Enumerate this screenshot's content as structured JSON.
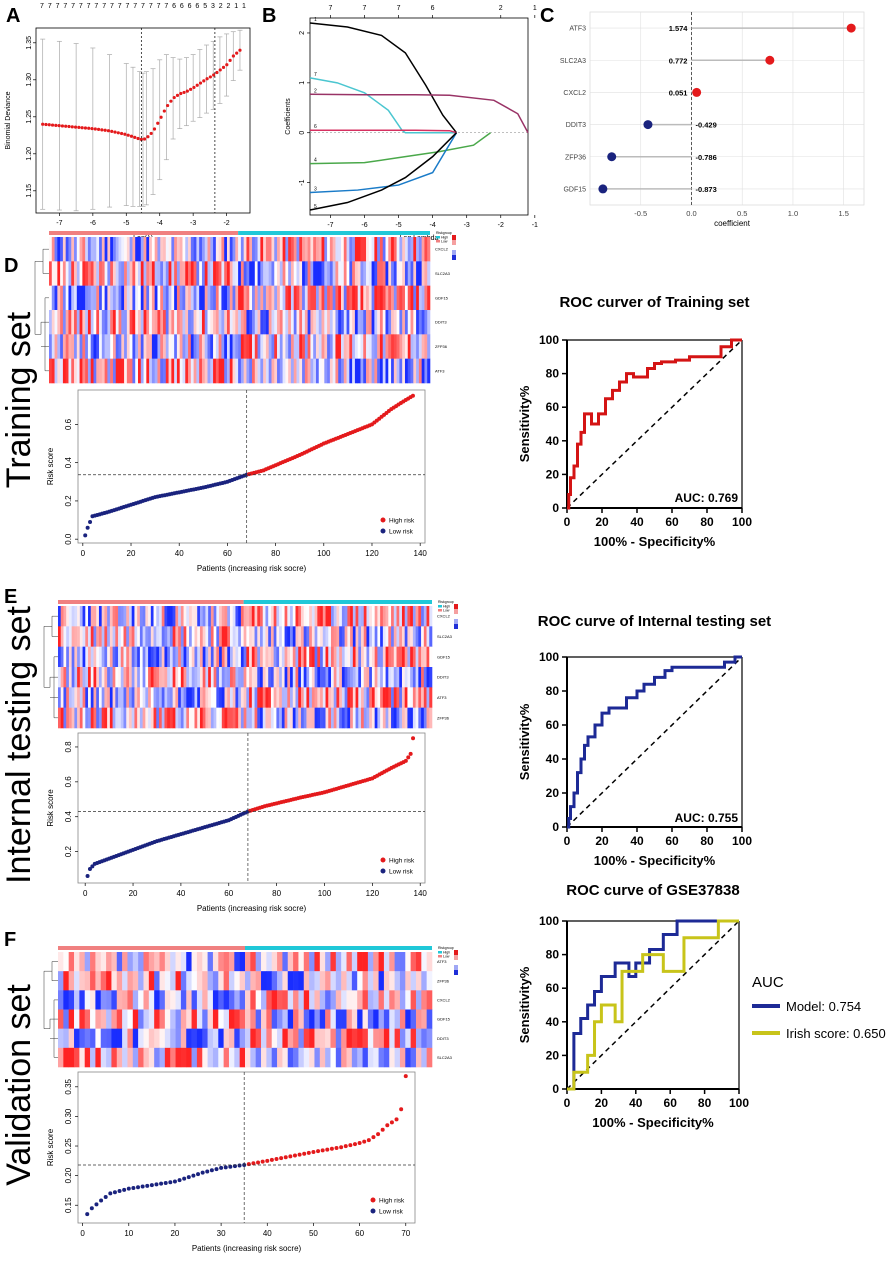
{
  "colors": {
    "red": "#e41a1c",
    "navy": "#1a237e",
    "black": "#000000",
    "grid": "#e0e0e0",
    "roc_red": "#d41414",
    "roc_navy": "#1d2a96",
    "roc_olive": "#c8c41a",
    "lasso": [
      "#000000",
      "#4bc6d0",
      "#993366",
      "#d63060",
      "#4aa84a",
      "#1a7bc8",
      "#000000"
    ],
    "group_high": "#f08080",
    "group_low": "#20c8d8"
  },
  "panels": {
    "A": "A",
    "B": "B",
    "C": "C",
    "D": "D",
    "E": "E",
    "F": "F"
  },
  "row_labels": {
    "training": "Training set",
    "internal": "Internal testing set",
    "validation": "Validation set"
  },
  "legend_small": {
    "risk_group": "Riskgroup",
    "high": "High",
    "low": "Low"
  },
  "chart_data": [
    {
      "id": "A",
      "type": "scatter",
      "xlabel": "Log(λ)",
      "ylabel": "Binomial Deviance",
      "xlim": [
        -7.7,
        -1.3
      ],
      "ylim": [
        1.12,
        1.37
      ],
      "xticks": [
        -7,
        -6,
        -5,
        -4,
        -3,
        -2
      ],
      "yticks": [
        1.15,
        1.2,
        1.25,
        1.3,
        1.35
      ],
      "top_counts": [
        "7",
        "7",
        "7",
        "7",
        "7",
        "7",
        "7",
        "7",
        "7",
        "7",
        "7",
        "7",
        "7",
        "7",
        "7",
        "7",
        "7",
        "6",
        "6",
        "6",
        "6",
        "5",
        "3",
        "2",
        "2",
        "1",
        "1"
      ],
      "vlines": [
        -4.55,
        -2.35
      ],
      "curve_x": [
        -7.5,
        -7.0,
        -6.5,
        -6.0,
        -5.5,
        -5.0,
        -4.8,
        -4.6,
        -4.5,
        -4.4,
        -4.2,
        -4.0,
        -3.8,
        -3.6,
        -3.4,
        -3.2,
        -3.0,
        -2.8,
        -2.6,
        -2.4,
        -2.2,
        -2.0,
        -1.8,
        -1.6
      ],
      "curve_y": [
        1.24,
        1.238,
        1.236,
        1.234,
        1.231,
        1.226,
        1.223,
        1.22,
        1.219,
        1.221,
        1.23,
        1.246,
        1.263,
        1.275,
        1.281,
        1.284,
        1.289,
        1.295,
        1.301,
        1.306,
        1.313,
        1.32,
        1.332,
        1.34
      ],
      "err_upper": [
        1.355,
        1.352,
        1.349,
        1.343,
        1.334,
        1.322,
        1.317,
        1.311,
        1.309,
        1.311,
        1.315,
        1.327,
        1.334,
        1.33,
        1.328,
        1.33,
        1.334,
        1.341,
        1.347,
        1.352,
        1.358,
        1.362,
        1.365,
        1.367
      ],
      "err_lower": [
        1.125,
        1.124,
        1.123,
        1.125,
        1.128,
        1.13,
        1.129,
        1.129,
        1.129,
        1.131,
        1.145,
        1.165,
        1.192,
        1.22,
        1.234,
        1.238,
        1.244,
        1.249,
        1.255,
        1.26,
        1.268,
        1.278,
        1.299,
        1.313
      ]
    },
    {
      "id": "B",
      "type": "line",
      "xlabel": "Log Lambda",
      "ylabel": "Coefficients",
      "xlim": [
        -7.6,
        -1.2
      ],
      "ylim": [
        -1.65,
        2.3
      ],
      "xticks": [
        -7,
        -6,
        -5,
        -4,
        -3,
        -2,
        -1
      ],
      "yticks": [
        -1,
        0,
        1,
        2
      ],
      "top_ticks": [
        "7",
        "7",
        "7",
        "6",
        "2",
        "1"
      ],
      "top_tick_x": [
        -7,
        -6,
        -5,
        -4,
        -2,
        -1
      ],
      "series": [
        {
          "name": "s1",
          "x": [
            -7.6,
            -6.5,
            -5.5,
            -4.8,
            -4.2,
            -3.7,
            -3.3
          ],
          "y": [
            2.2,
            2.12,
            1.95,
            1.6,
            0.95,
            0.35,
            0.0
          ]
        },
        {
          "name": "s2",
          "x": [
            -7.6,
            -6.8,
            -6.0,
            -5.3,
            -4.9,
            -4.8,
            -3.3
          ],
          "y": [
            1.1,
            1.0,
            0.8,
            0.45,
            0.05,
            0.0,
            0.0
          ]
        },
        {
          "name": "s3",
          "x": [
            -7.6,
            -6.0,
            -4.5,
            -3.5,
            -2.2,
            -1.5,
            -1.2
          ],
          "y": [
            0.77,
            0.76,
            0.76,
            0.75,
            0.65,
            0.38,
            0.0
          ]
        },
        {
          "name": "s4",
          "x": [
            -7.6,
            -6.0,
            -4.5,
            -3.5,
            -3.3
          ],
          "y": [
            0.05,
            0.05,
            0.05,
            0.04,
            0.0
          ]
        },
        {
          "name": "s5",
          "x": [
            -7.6,
            -6.0,
            -5.0,
            -3.8,
            -2.8,
            -2.3
          ],
          "y": [
            -0.62,
            -0.6,
            -0.5,
            -0.38,
            -0.25,
            0.0
          ]
        },
        {
          "name": "s6",
          "x": [
            -7.6,
            -6.2,
            -5.0,
            -4.0,
            -3.3
          ],
          "y": [
            -1.2,
            -1.15,
            -1.05,
            -0.8,
            0.0
          ]
        },
        {
          "name": "s7",
          "x": [
            -7.6,
            -6.5,
            -5.5,
            -4.8,
            -4.0,
            -3.3
          ],
          "y": [
            -1.55,
            -1.4,
            -1.15,
            -0.9,
            -0.48,
            0.0
          ]
        }
      ],
      "left_labels": [
        "1",
        "7",
        "2",
        "6",
        "4",
        "3",
        "5"
      ]
    },
    {
      "id": "C",
      "type": "scatter",
      "xlabel": "coefficient",
      "xlim": [
        -1.0,
        1.7
      ],
      "xticks": [
        -0.5,
        0.0,
        0.5,
        1.0,
        1.5
      ],
      "xtick_labels": [
        "-0.5",
        "0.0",
        "0.5",
        "1.0",
        "1.5"
      ],
      "genes": [
        "ATF3",
        "SLC2A3",
        "CXCL2",
        "DDIT3",
        "ZFP36",
        "GDF15"
      ],
      "values": [
        1.574,
        0.772,
        0.051,
        -0.429,
        -0.786,
        -0.873
      ],
      "value_labels": [
        "1.574",
        "0.772",
        "0.051",
        "-0.429",
        "-0.786",
        "-0.873"
      ]
    },
    {
      "id": "D_risk",
      "type": "scatter",
      "xlabel": "Patients (increasing risk socre)",
      "ylabel": "Risk score",
      "xlim": [
        -2,
        142
      ],
      "ylim": [
        -0.02,
        0.78
      ],
      "xticks": [
        0,
        20,
        40,
        60,
        80,
        100,
        120,
        140
      ],
      "yticks": [
        0.0,
        0.2,
        0.4,
        0.6
      ],
      "cutoff_x": 68,
      "cutoff_y": 0.337,
      "n": 137,
      "curve_x": [
        1,
        2,
        4,
        10,
        30,
        50,
        60,
        68,
        75,
        90,
        100,
        110,
        120,
        128,
        133,
        137
      ],
      "curve_y": [
        0.02,
        0.06,
        0.12,
        0.14,
        0.22,
        0.27,
        0.3,
        0.337,
        0.36,
        0.44,
        0.5,
        0.55,
        0.6,
        0.68,
        0.72,
        0.75
      ],
      "legend": [
        "High risk",
        "Low risk"
      ]
    },
    {
      "id": "D_roc",
      "type": "line",
      "title": "ROC curver of Training set",
      "xlabel": "100% - Specificity%",
      "ylabel": "Sensitivity%",
      "xlim": [
        0,
        100
      ],
      "ylim": [
        0,
        100
      ],
      "xticks": [
        0,
        20,
        40,
        60,
        80,
        100
      ],
      "yticks": [
        0,
        20,
        40,
        60,
        80,
        100
      ],
      "auc_label": "AUC: 0.769",
      "x": [
        0,
        1,
        1,
        2,
        2,
        4,
        4,
        6,
        6,
        8,
        8,
        10,
        10,
        14,
        14,
        18,
        18,
        22,
        22,
        26,
        26,
        30,
        30,
        34,
        34,
        38,
        38,
        46,
        46,
        50,
        50,
        54,
        54,
        62,
        62,
        70,
        70,
        88,
        88,
        94,
        94,
        100
      ],
      "y": [
        0,
        0,
        8,
        8,
        18,
        18,
        25,
        25,
        38,
        38,
        45,
        45,
        56,
        56,
        50,
        50,
        56,
        56,
        65,
        65,
        70,
        70,
        75,
        75,
        80,
        80,
        78,
        78,
        83,
        83,
        86,
        86,
        87,
        87,
        88,
        88,
        90,
        90,
        96,
        96,
        100,
        100
      ]
    },
    {
      "id": "E_risk",
      "type": "scatter",
      "xlabel": "Patients (increasing risk socre)",
      "ylabel": "Risk score",
      "xlim": [
        -3,
        142
      ],
      "ylim": [
        0.02,
        0.88
      ],
      "xticks": [
        0,
        20,
        40,
        60,
        80,
        100,
        120,
        140
      ],
      "yticks": [
        0.2,
        0.4,
        0.6,
        0.8
      ],
      "cutoff_x": 68,
      "cutoff_y": 0.43,
      "n": 137,
      "curve_x": [
        1,
        2,
        4,
        10,
        20,
        30,
        40,
        50,
        60,
        68,
        75,
        90,
        100,
        110,
        120,
        128,
        134,
        136,
        137
      ],
      "curve_y": [
        0.06,
        0.1,
        0.13,
        0.16,
        0.21,
        0.26,
        0.3,
        0.34,
        0.38,
        0.43,
        0.46,
        0.51,
        0.54,
        0.58,
        0.62,
        0.68,
        0.72,
        0.76,
        0.85
      ],
      "legend": [
        "High risk",
        "Low risk"
      ]
    },
    {
      "id": "E_roc",
      "type": "line",
      "title": "ROC curve of Internal testing set",
      "xlabel": "100% - Specificity%",
      "ylabel": "Sensitivity%",
      "xlim": [
        0,
        100
      ],
      "ylim": [
        0,
        100
      ],
      "xticks": [
        0,
        20,
        40,
        60,
        80,
        100
      ],
      "yticks": [
        0,
        20,
        40,
        60,
        80,
        100
      ],
      "auc_label": "AUC: 0.755",
      "x": [
        0,
        1,
        1,
        2,
        2,
        4,
        4,
        6,
        6,
        8,
        8,
        10,
        10,
        12,
        12,
        16,
        16,
        20,
        20,
        24,
        24,
        34,
        34,
        40,
        40,
        44,
        44,
        50,
        50,
        56,
        56,
        60,
        60,
        90,
        90,
        96,
        96,
        100
      ],
      "y": [
        0,
        0,
        5,
        5,
        12,
        12,
        20,
        20,
        32,
        32,
        40,
        40,
        48,
        48,
        53,
        53,
        60,
        60,
        67,
        67,
        70,
        70,
        76,
        76,
        80,
        80,
        84,
        84,
        88,
        88,
        92,
        92,
        94,
        94,
        97,
        97,
        100,
        100
      ]
    },
    {
      "id": "F_risk",
      "type": "scatter",
      "xlabel": "Patients (increasing risk socre)",
      "ylabel": "Risk score",
      "xlim": [
        -1,
        72
      ],
      "ylim": [
        0.12,
        0.375
      ],
      "xticks": [
        0,
        10,
        20,
        30,
        40,
        50,
        60,
        70
      ],
      "yticks": [
        0.15,
        0.2,
        0.25,
        0.3,
        0.35
      ],
      "cutoff_x": 35,
      "cutoff_y": 0.218,
      "n": 70,
      "curve_x": [
        1,
        2,
        4,
        6,
        10,
        20,
        26,
        30,
        35,
        40,
        50,
        56,
        60,
        62,
        64,
        66,
        68,
        69,
        70
      ],
      "curve_y": [
        0.135,
        0.145,
        0.158,
        0.17,
        0.178,
        0.19,
        0.205,
        0.213,
        0.218,
        0.225,
        0.24,
        0.248,
        0.255,
        0.26,
        0.27,
        0.285,
        0.295,
        0.312,
        0.368
      ],
      "legend": [
        "High risk",
        "Low risk"
      ]
    },
    {
      "id": "F_roc",
      "type": "line",
      "title": "ROC curve of GSE37838",
      "xlabel": "100% - Specificity%",
      "ylabel": "Sensitivity%",
      "xlim": [
        0,
        100
      ],
      "ylim": [
        0,
        100
      ],
      "xticks": [
        0,
        20,
        40,
        60,
        80,
        100
      ],
      "yticks": [
        0,
        20,
        40,
        60,
        80,
        100
      ],
      "legend_title": "AUC",
      "series": [
        {
          "name": "Model: 0.754",
          "x": [
            0,
            4,
            4,
            8,
            8,
            12,
            12,
            16,
            16,
            20,
            20,
            28,
            28,
            36,
            36,
            40,
            40,
            48,
            48,
            56,
            56,
            64,
            64,
            100
          ],
          "y": [
            0,
            0,
            33,
            33,
            42,
            42,
            50,
            50,
            58,
            58,
            67,
            67,
            75,
            75,
            67,
            67,
            75,
            75,
            83,
            83,
            92,
            92,
            100,
            100
          ]
        },
        {
          "name": "Irish score: 0.650",
          "x": [
            0,
            4,
            4,
            12,
            12,
            16,
            16,
            20,
            20,
            28,
            28,
            32,
            32,
            44,
            44,
            56,
            56,
            68,
            68,
            88,
            88,
            92,
            92,
            100
          ],
          "y": [
            0,
            0,
            10,
            10,
            20,
            20,
            40,
            40,
            50,
            50,
            40,
            40,
            70,
            70,
            80,
            80,
            70,
            70,
            90,
            90,
            100,
            100,
            100,
            100
          ]
        }
      ]
    }
  ],
  "heatmaps": [
    {
      "id": "D_heat",
      "genes": [
        "CXCL2",
        "SLC2A3",
        "GDF15",
        "DDIT3",
        "ZFP36",
        "ATF3"
      ],
      "cols": 137,
      "cut": 68,
      "seed": 11
    },
    {
      "id": "E_heat",
      "genes": [
        "CXCL2",
        "SLC2A3",
        "GDF15",
        "DDIT3",
        "ATF3",
        "ZFP36"
      ],
      "cols": 137,
      "cut": 68,
      "seed": 23
    },
    {
      "id": "F_heat",
      "genes": [
        "ATF3",
        "ZFP36",
        "CXCL2",
        "GDF15",
        "DDIT3",
        "SLC2A3"
      ],
      "cols": 70,
      "cut": 35,
      "seed": 37
    }
  ]
}
